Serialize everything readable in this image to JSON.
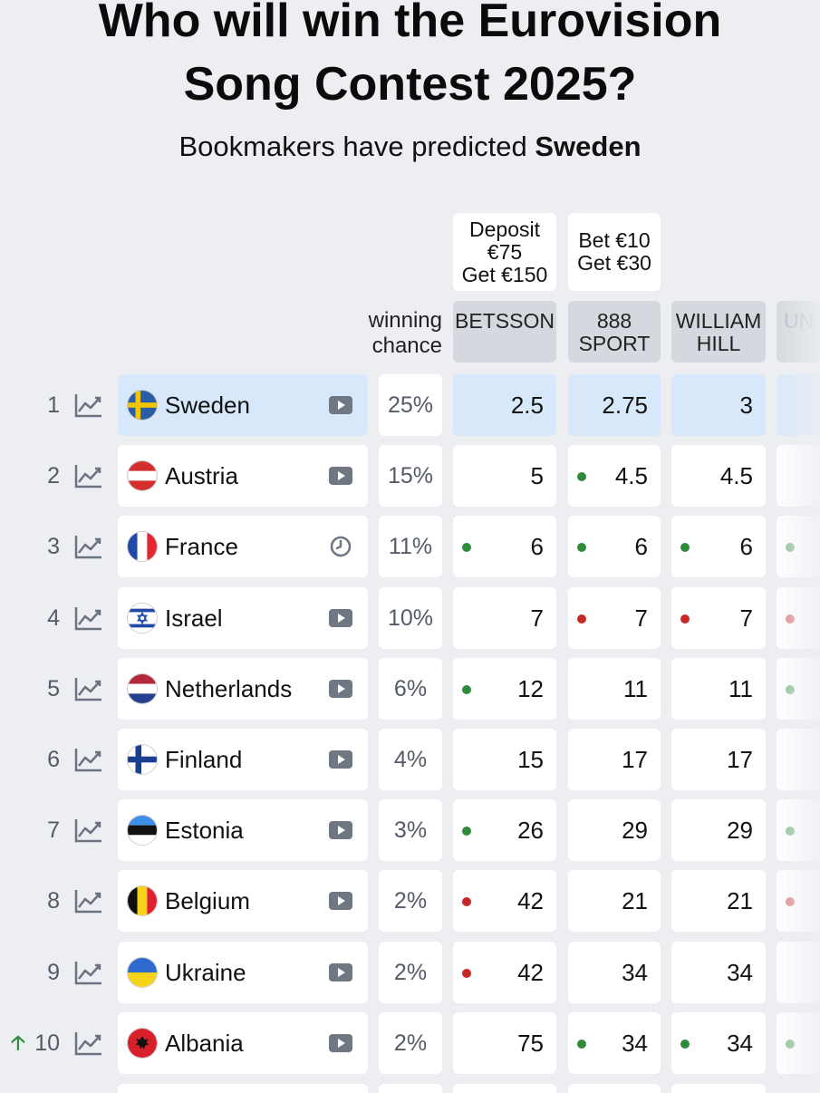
{
  "header": {
    "title_line1": "Who will win the Eurovision",
    "title_line2": "Song Contest 2025?",
    "subtitle_prefix": "Bookmakers have predicted ",
    "subtitle_bold": "Sweden"
  },
  "columns": {
    "winning_chance_line1": "winning",
    "winning_chance_line2": "chance",
    "bookmakers": [
      {
        "name": "BETSSON",
        "promo_line1": "Deposit",
        "promo_line2": "€75",
        "promo_line3": "Get €150"
      },
      {
        "name": "888\nSPORT",
        "promo_line1": "Bet €10",
        "promo_line2": "Get €30"
      },
      {
        "name": "WILLIAM\nHILL"
      },
      {
        "name": "UN"
      }
    ]
  },
  "colors": {
    "highlight": "#d8e8fb",
    "dot_green": "#2e8b3a",
    "dot_red": "#c62828",
    "trend_icon": "#6b7280"
  },
  "rows": [
    {
      "rank": "1",
      "country": "Sweden",
      "flag": "sweden",
      "media_icon": "play",
      "chance": "25%",
      "highlight": true,
      "odds": [
        {
          "v": "2.5",
          "dot": ""
        },
        {
          "v": "2.75",
          "dot": ""
        },
        {
          "v": "3",
          "dot": ""
        }
      ],
      "partial_dot": ""
    },
    {
      "rank": "2",
      "country": "Austria",
      "flag": "austria",
      "media_icon": "play",
      "chance": "15%",
      "odds": [
        {
          "v": "5",
          "dot": ""
        },
        {
          "v": "4.5",
          "dot": "green"
        },
        {
          "v": "4.5",
          "dot": ""
        }
      ],
      "partial_dot": ""
    },
    {
      "rank": "3",
      "country": "France",
      "flag": "france",
      "media_icon": "clock",
      "chance": "11%",
      "odds": [
        {
          "v": "6",
          "dot": "green"
        },
        {
          "v": "6",
          "dot": "green"
        },
        {
          "v": "6",
          "dot": "green"
        }
      ],
      "partial_dot": "green"
    },
    {
      "rank": "4",
      "country": "Israel",
      "flag": "israel",
      "media_icon": "play",
      "chance": "10%",
      "odds": [
        {
          "v": "7",
          "dot": ""
        },
        {
          "v": "7",
          "dot": "red"
        },
        {
          "v": "7",
          "dot": "red"
        }
      ],
      "partial_dot": "red"
    },
    {
      "rank": "5",
      "country": "Netherlands",
      "flag": "netherlands",
      "media_icon": "play",
      "chance": "6%",
      "odds": [
        {
          "v": "12",
          "dot": "green"
        },
        {
          "v": "11",
          "dot": ""
        },
        {
          "v": "11",
          "dot": ""
        }
      ],
      "partial_dot": "green"
    },
    {
      "rank": "6",
      "country": "Finland",
      "flag": "finland",
      "media_icon": "play",
      "chance": "4%",
      "odds": [
        {
          "v": "15",
          "dot": ""
        },
        {
          "v": "17",
          "dot": ""
        },
        {
          "v": "17",
          "dot": ""
        }
      ],
      "partial_dot": ""
    },
    {
      "rank": "7",
      "country": "Estonia",
      "flag": "estonia",
      "media_icon": "play",
      "chance": "3%",
      "odds": [
        {
          "v": "26",
          "dot": "green"
        },
        {
          "v": "29",
          "dot": ""
        },
        {
          "v": "29",
          "dot": ""
        }
      ],
      "partial_dot": "green"
    },
    {
      "rank": "8",
      "country": "Belgium",
      "flag": "belgium",
      "media_icon": "play",
      "chance": "2%",
      "odds": [
        {
          "v": "42",
          "dot": "red"
        },
        {
          "v": "21",
          "dot": ""
        },
        {
          "v": "21",
          "dot": ""
        }
      ],
      "partial_dot": "red"
    },
    {
      "rank": "9",
      "country": "Ukraine",
      "flag": "ukraine",
      "media_icon": "play",
      "chance": "2%",
      "odds": [
        {
          "v": "42",
          "dot": "red"
        },
        {
          "v": "34",
          "dot": ""
        },
        {
          "v": "34",
          "dot": ""
        }
      ],
      "partial_dot": ""
    },
    {
      "rank": "10",
      "country": "Albania",
      "flag": "albania",
      "media_icon": "play",
      "chance": "2%",
      "rank_change": "up",
      "odds": [
        {
          "v": "75",
          "dot": ""
        },
        {
          "v": "34",
          "dot": "green"
        },
        {
          "v": "34",
          "dot": "green"
        }
      ],
      "partial_dot": "green"
    }
  ]
}
